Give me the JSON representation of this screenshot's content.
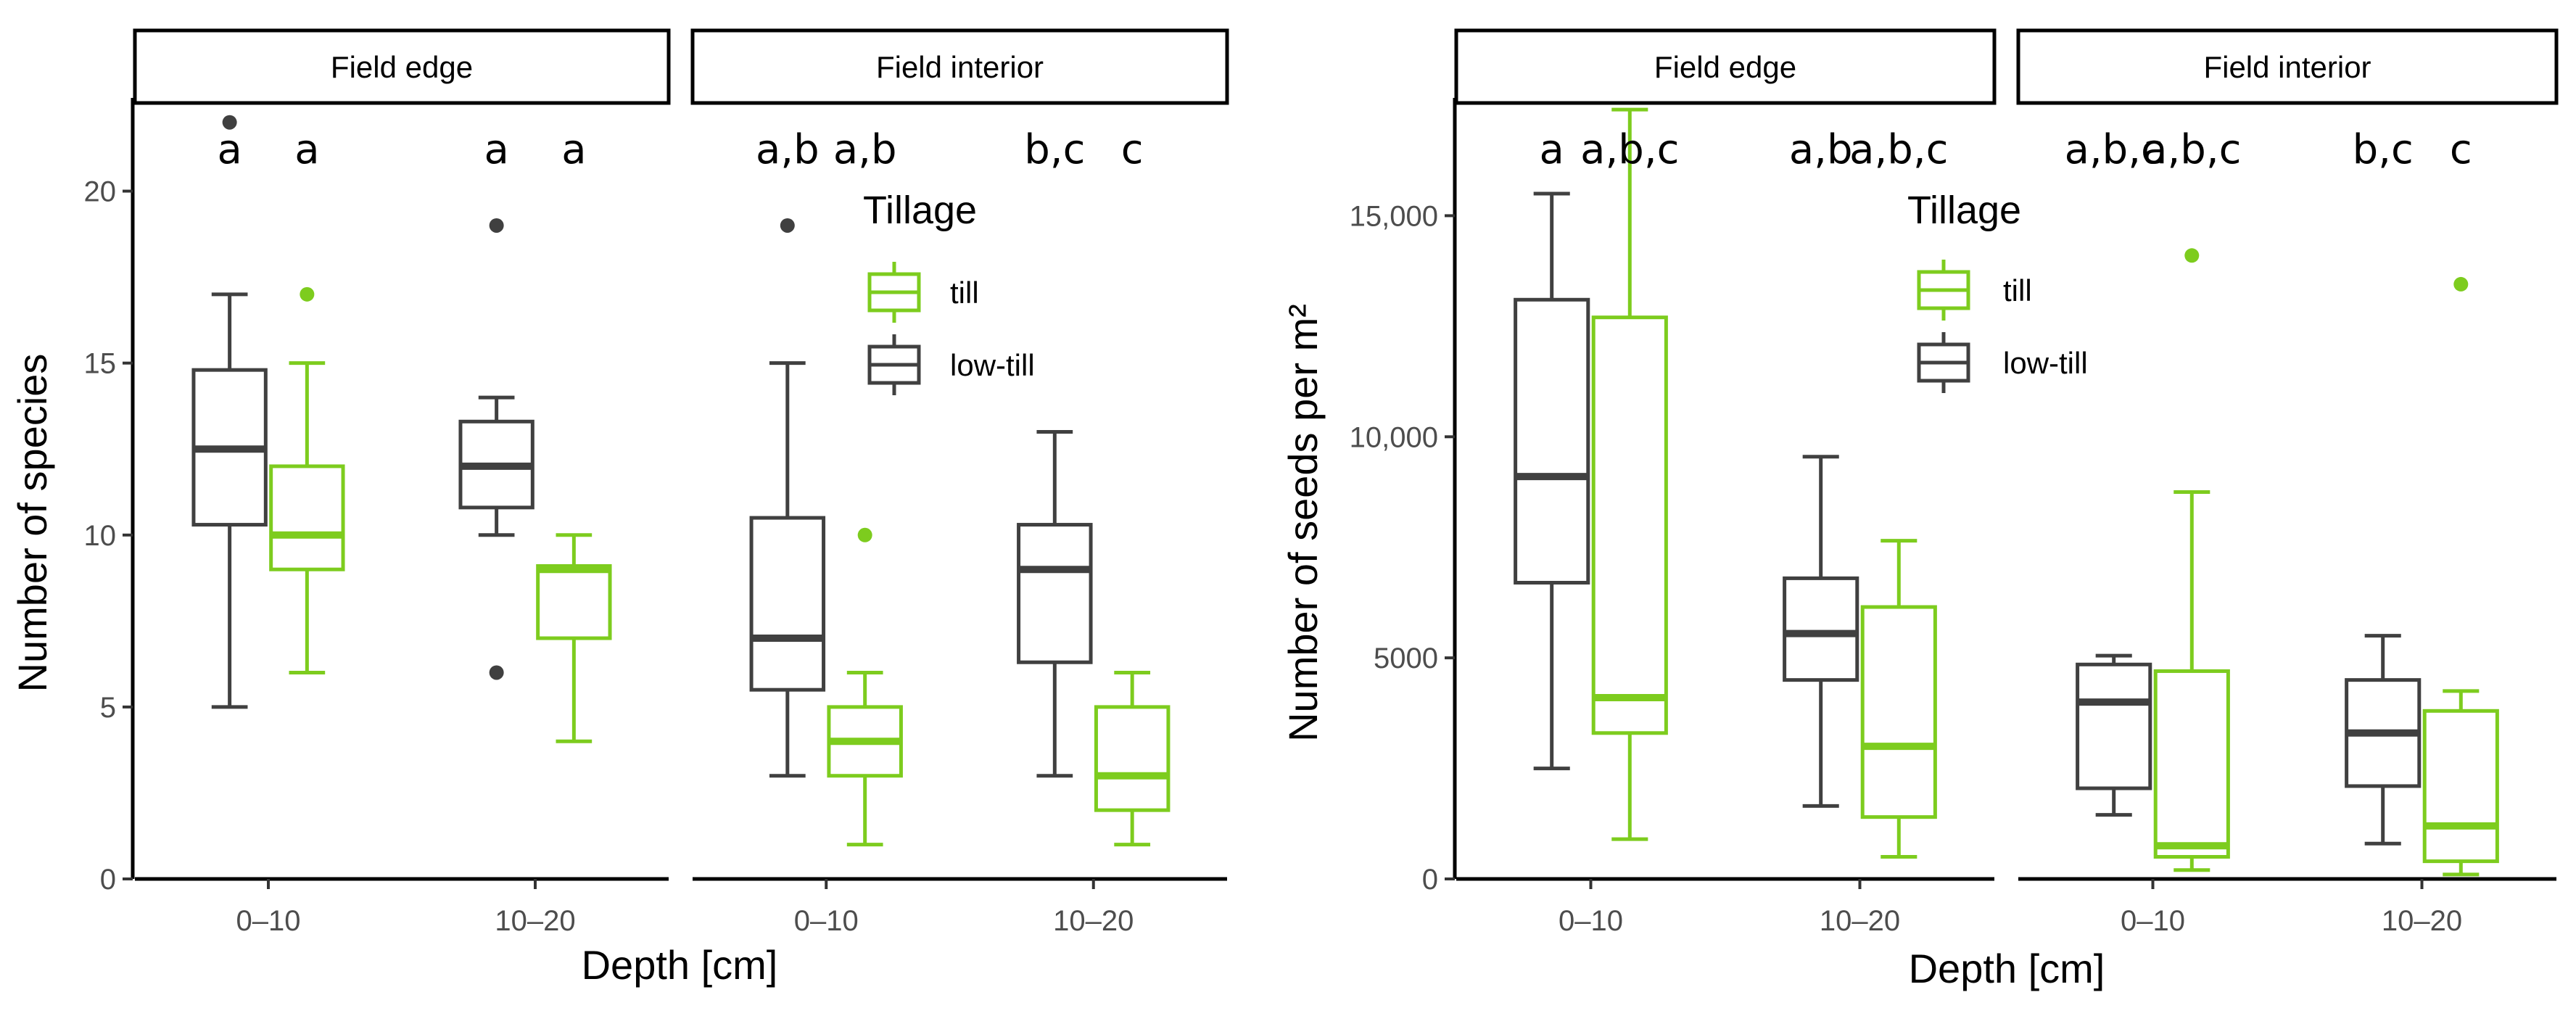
{
  "colors": {
    "till": "#7dcc1e",
    "low_till": "#404040"
  },
  "chart_data": [
    {
      "type": "box",
      "title": "",
      "xlabel": "Depth [cm]",
      "ylabel": "Number of species",
      "ylim": [
        0,
        22.5
      ],
      "yticks": [
        0,
        5,
        10,
        15,
        20
      ],
      "ytick_labels": [
        "0",
        "5",
        "10",
        "15",
        "20"
      ],
      "legend": {
        "title": "Tillage",
        "entries": [
          "till",
          "low-till"
        ],
        "placement": "top-right"
      },
      "facets": [
        {
          "label": "Field edge",
          "categories": [
            "0–10",
            "10–20"
          ],
          "letters": [
            "a",
            "a",
            "a",
            "a"
          ],
          "boxes": [
            {
              "depth": "0–10",
              "tillage": "low-till",
              "lower": 5,
              "q1": 10.3,
              "median": 12.5,
              "q3": 14.8,
              "upper": 17,
              "outliers": [
                22
              ]
            },
            {
              "depth": "0–10",
              "tillage": "till",
              "lower": 6,
              "q1": 9,
              "median": 10,
              "q3": 12,
              "upper": 15,
              "outliers": [
                17
              ]
            },
            {
              "depth": "10–20",
              "tillage": "low-till",
              "lower": 10,
              "q1": 10.8,
              "median": 12,
              "q3": 13.3,
              "upper": 14,
              "outliers": [
                19,
                6
              ]
            },
            {
              "depth": "10–20",
              "tillage": "till",
              "lower": 4,
              "q1": 7,
              "median": 9,
              "q3": 9.1,
              "upper": 10,
              "outliers": []
            }
          ]
        },
        {
          "label": "Field interior",
          "categories": [
            "0–10",
            "10–20"
          ],
          "letters": [
            "a,b",
            "a,b",
            "b,c",
            "c"
          ],
          "boxes": [
            {
              "depth": "0–10",
              "tillage": "low-till",
              "lower": 3,
              "q1": 5.5,
              "median": 7,
              "q3": 10.5,
              "upper": 15,
              "outliers": [
                19
              ]
            },
            {
              "depth": "0–10",
              "tillage": "till",
              "lower": 1,
              "q1": 3,
              "median": 4,
              "q3": 5,
              "upper": 6,
              "outliers": [
                10
              ]
            },
            {
              "depth": "10–20",
              "tillage": "low-till",
              "lower": 3,
              "q1": 6.3,
              "median": 9,
              "q3": 10.3,
              "upper": 13,
              "outliers": []
            },
            {
              "depth": "10–20",
              "tillage": "till",
              "lower": 1,
              "q1": 2,
              "median": 3,
              "q3": 5,
              "upper": 6,
              "outliers": []
            }
          ]
        }
      ]
    },
    {
      "type": "box",
      "title": "",
      "xlabel": "Depth [cm]",
      "ylabel": "Number of seeds per m²",
      "ylim": [
        0,
        17500
      ],
      "yticks": [
        0,
        5000,
        10000,
        15000
      ],
      "ytick_labels": [
        "0",
        "5000",
        "10,000",
        "15,000"
      ],
      "legend": {
        "title": "Tillage",
        "entries": [
          "till",
          "low-till"
        ],
        "placement": "top-right"
      },
      "facets": [
        {
          "label": "Field edge",
          "categories": [
            "0–10",
            "10–20"
          ],
          "letters": [
            "a",
            "a,b,c",
            "a,b",
            "a,b,c"
          ],
          "boxes": [
            {
              "depth": "0–10",
              "tillage": "low-till",
              "lower": 2500,
              "q1": 6700,
              "median": 9100,
              "q3": 13100,
              "upper": 15500,
              "outliers": []
            },
            {
              "depth": "0–10",
              "tillage": "till",
              "lower": 900,
              "q1": 3300,
              "median": 4100,
              "q3": 12700,
              "upper": 17400,
              "outliers": []
            },
            {
              "depth": "10–20",
              "tillage": "low-till",
              "lower": 1650,
              "q1": 4500,
              "median": 5550,
              "q3": 6800,
              "upper": 9550,
              "outliers": []
            },
            {
              "depth": "10–20",
              "tillage": "till",
              "lower": 500,
              "q1": 1400,
              "median": 3000,
              "q3": 6150,
              "upper": 7650,
              "outliers": []
            }
          ]
        },
        {
          "label": "Field interior",
          "categories": [
            "0–10",
            "10–20"
          ],
          "letters": [
            "a,b,c",
            "a,b,c",
            "b,c",
            "c"
          ],
          "boxes": [
            {
              "depth": "0–10",
              "tillage": "low-till",
              "lower": 1450,
              "q1": 2050,
              "median": 4000,
              "q3": 4850,
              "upper": 5050,
              "outliers": []
            },
            {
              "depth": "0–10",
              "tillage": "till",
              "lower": 200,
              "q1": 500,
              "median": 750,
              "q3": 4700,
              "upper": 8750,
              "outliers": [
                14100
              ]
            },
            {
              "depth": "10–20",
              "tillage": "low-till",
              "lower": 800,
              "q1": 2100,
              "median": 3300,
              "q3": 4500,
              "upper": 5500,
              "outliers": []
            },
            {
              "depth": "10–20",
              "tillage": "till",
              "lower": 100,
              "q1": 400,
              "median": 1200,
              "q3": 3800,
              "upper": 4250,
              "outliers": [
                13450
              ]
            }
          ]
        }
      ]
    }
  ]
}
